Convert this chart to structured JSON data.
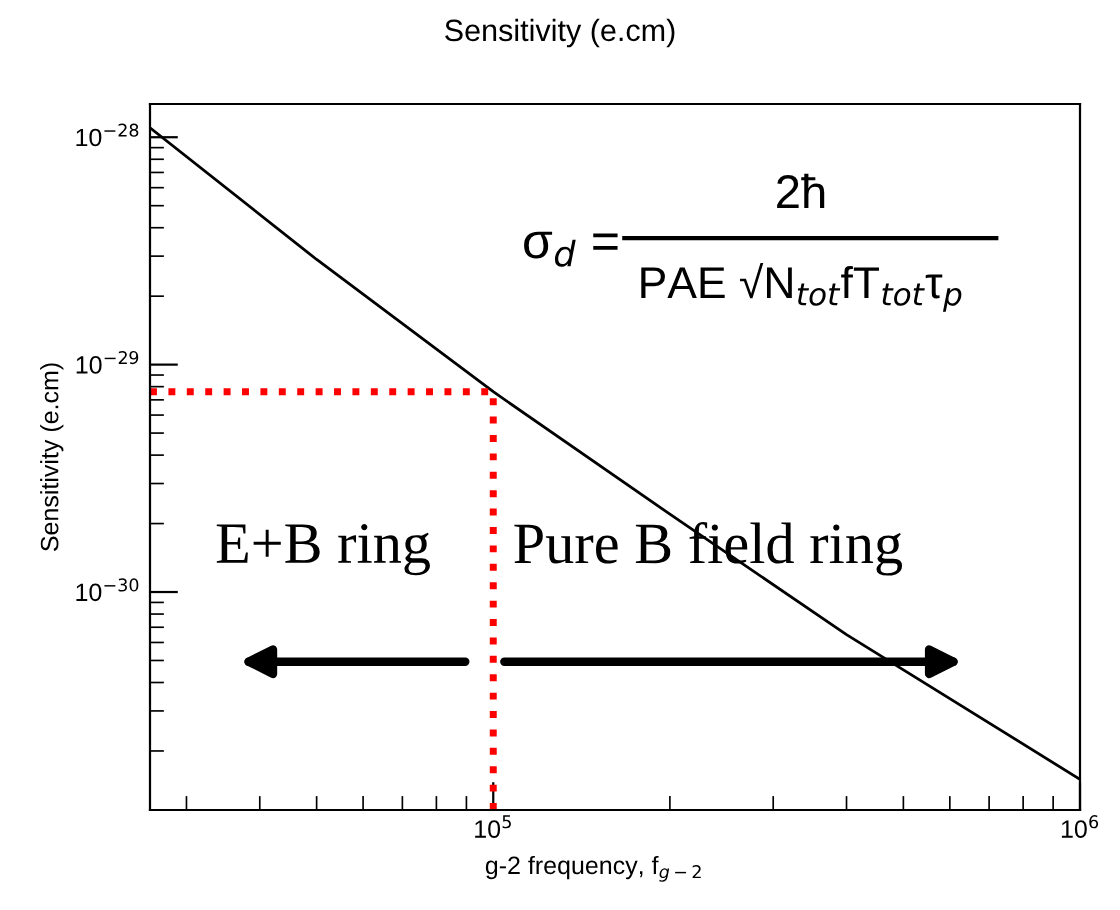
{
  "chart_data": {
    "type": "line",
    "title": "Sensitivity (e.cm)",
    "xlabel": "g-2 frequency, f$_{g−2}$",
    "ylabel": "Sensitivity (e.cm)",
    "log": "xy",
    "grid": false,
    "marker": "none",
    "line_style": "solid",
    "x": [
      26000,
      50000,
      100000,
      200000,
      400000,
      1000000
    ],
    "series": [
      {
        "color": "#000000",
        "values": [
          1.1e-28,
          2.9e-29,
          7.6e-30,
          2.2e-30,
          6.5e-31,
          1.5e-31
        ]
      }
    ],
    "xlim": [
      26000,
      1000000
    ],
    "ylim": [
      1.1e-31,
      1.4e-28
    ],
    "xticks": [
      {
        "value": 100000,
        "label": "10$^{5}$"
      },
      {
        "value": 1000000,
        "label": "10$^{6}$"
      }
    ],
    "yticks": [
      {
        "value": 1e-30,
        "label": "10$^{−30}$"
      },
      {
        "value": 1e-29,
        "label": "10$^{−29}$"
      },
      {
        "value": 1e-28,
        "label": "10$^{−28}$"
      }
    ],
    "ref_lines": [
      {
        "axis": "x",
        "value": 100000,
        "color": "#ff0000",
        "line_style": "dotted"
      },
      {
        "axis": "y",
        "value": 7.6e-30,
        "color": "#ff0000",
        "line_style": "dotted"
      }
    ],
    "annotations": [
      "E+B ring",
      "Pure B field ring",
      "σ$_{d}$ =",
      "2ħ",
      "PAE √N$_{tot}$fT$_{tot}$τ$_{p}$"
    ]
  }
}
